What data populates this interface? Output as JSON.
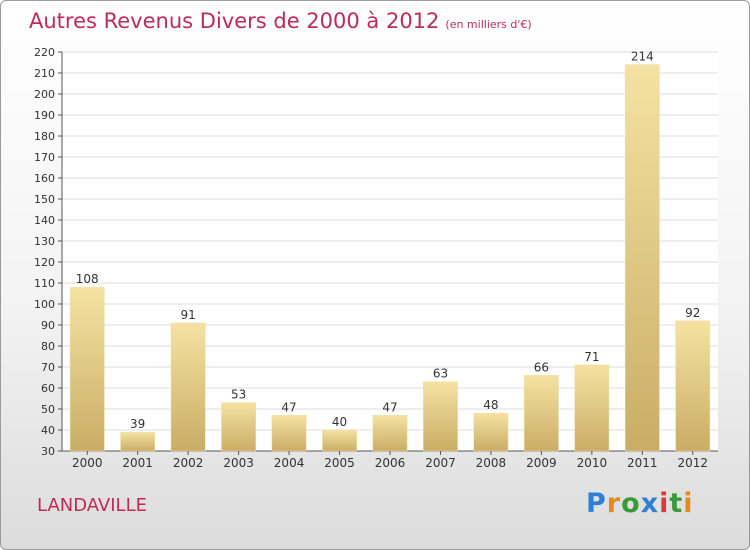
{
  "header": {
    "title": "Autres Revenus Divers de 2000 à 2012",
    "subtitle": "(en milliers d'€)"
  },
  "footer": {
    "commune": "LANDAVILLE",
    "brand": "Proxiti",
    "brand_colors": [
      "#2f7fd6",
      "#e58a1f",
      "#3a9a3a",
      "#2f7fd6",
      "#d93a3a",
      "#3a9a3a",
      "#e58a1f"
    ]
  },
  "colors": {
    "title": "#c02a5a",
    "bar_light": "#f5e2a2",
    "bar_dark": "#c9ad66",
    "grid": "#dcdcdc"
  },
  "chart_data": {
    "type": "bar",
    "title": "Autres Revenus Divers de 2000 à 2012",
    "subtitle": "(en milliers d'€)",
    "categories": [
      "2000",
      "2001",
      "2002",
      "2003",
      "2004",
      "2005",
      "2006",
      "2007",
      "2008",
      "2009",
      "2010",
      "2011",
      "2012"
    ],
    "values": [
      108,
      39,
      91,
      53,
      47,
      40,
      47,
      63,
      48,
      66,
      71,
      214,
      92
    ],
    "ylim": [
      30,
      220
    ],
    "ytick_step": 10,
    "grid": true,
    "legend": "none"
  }
}
